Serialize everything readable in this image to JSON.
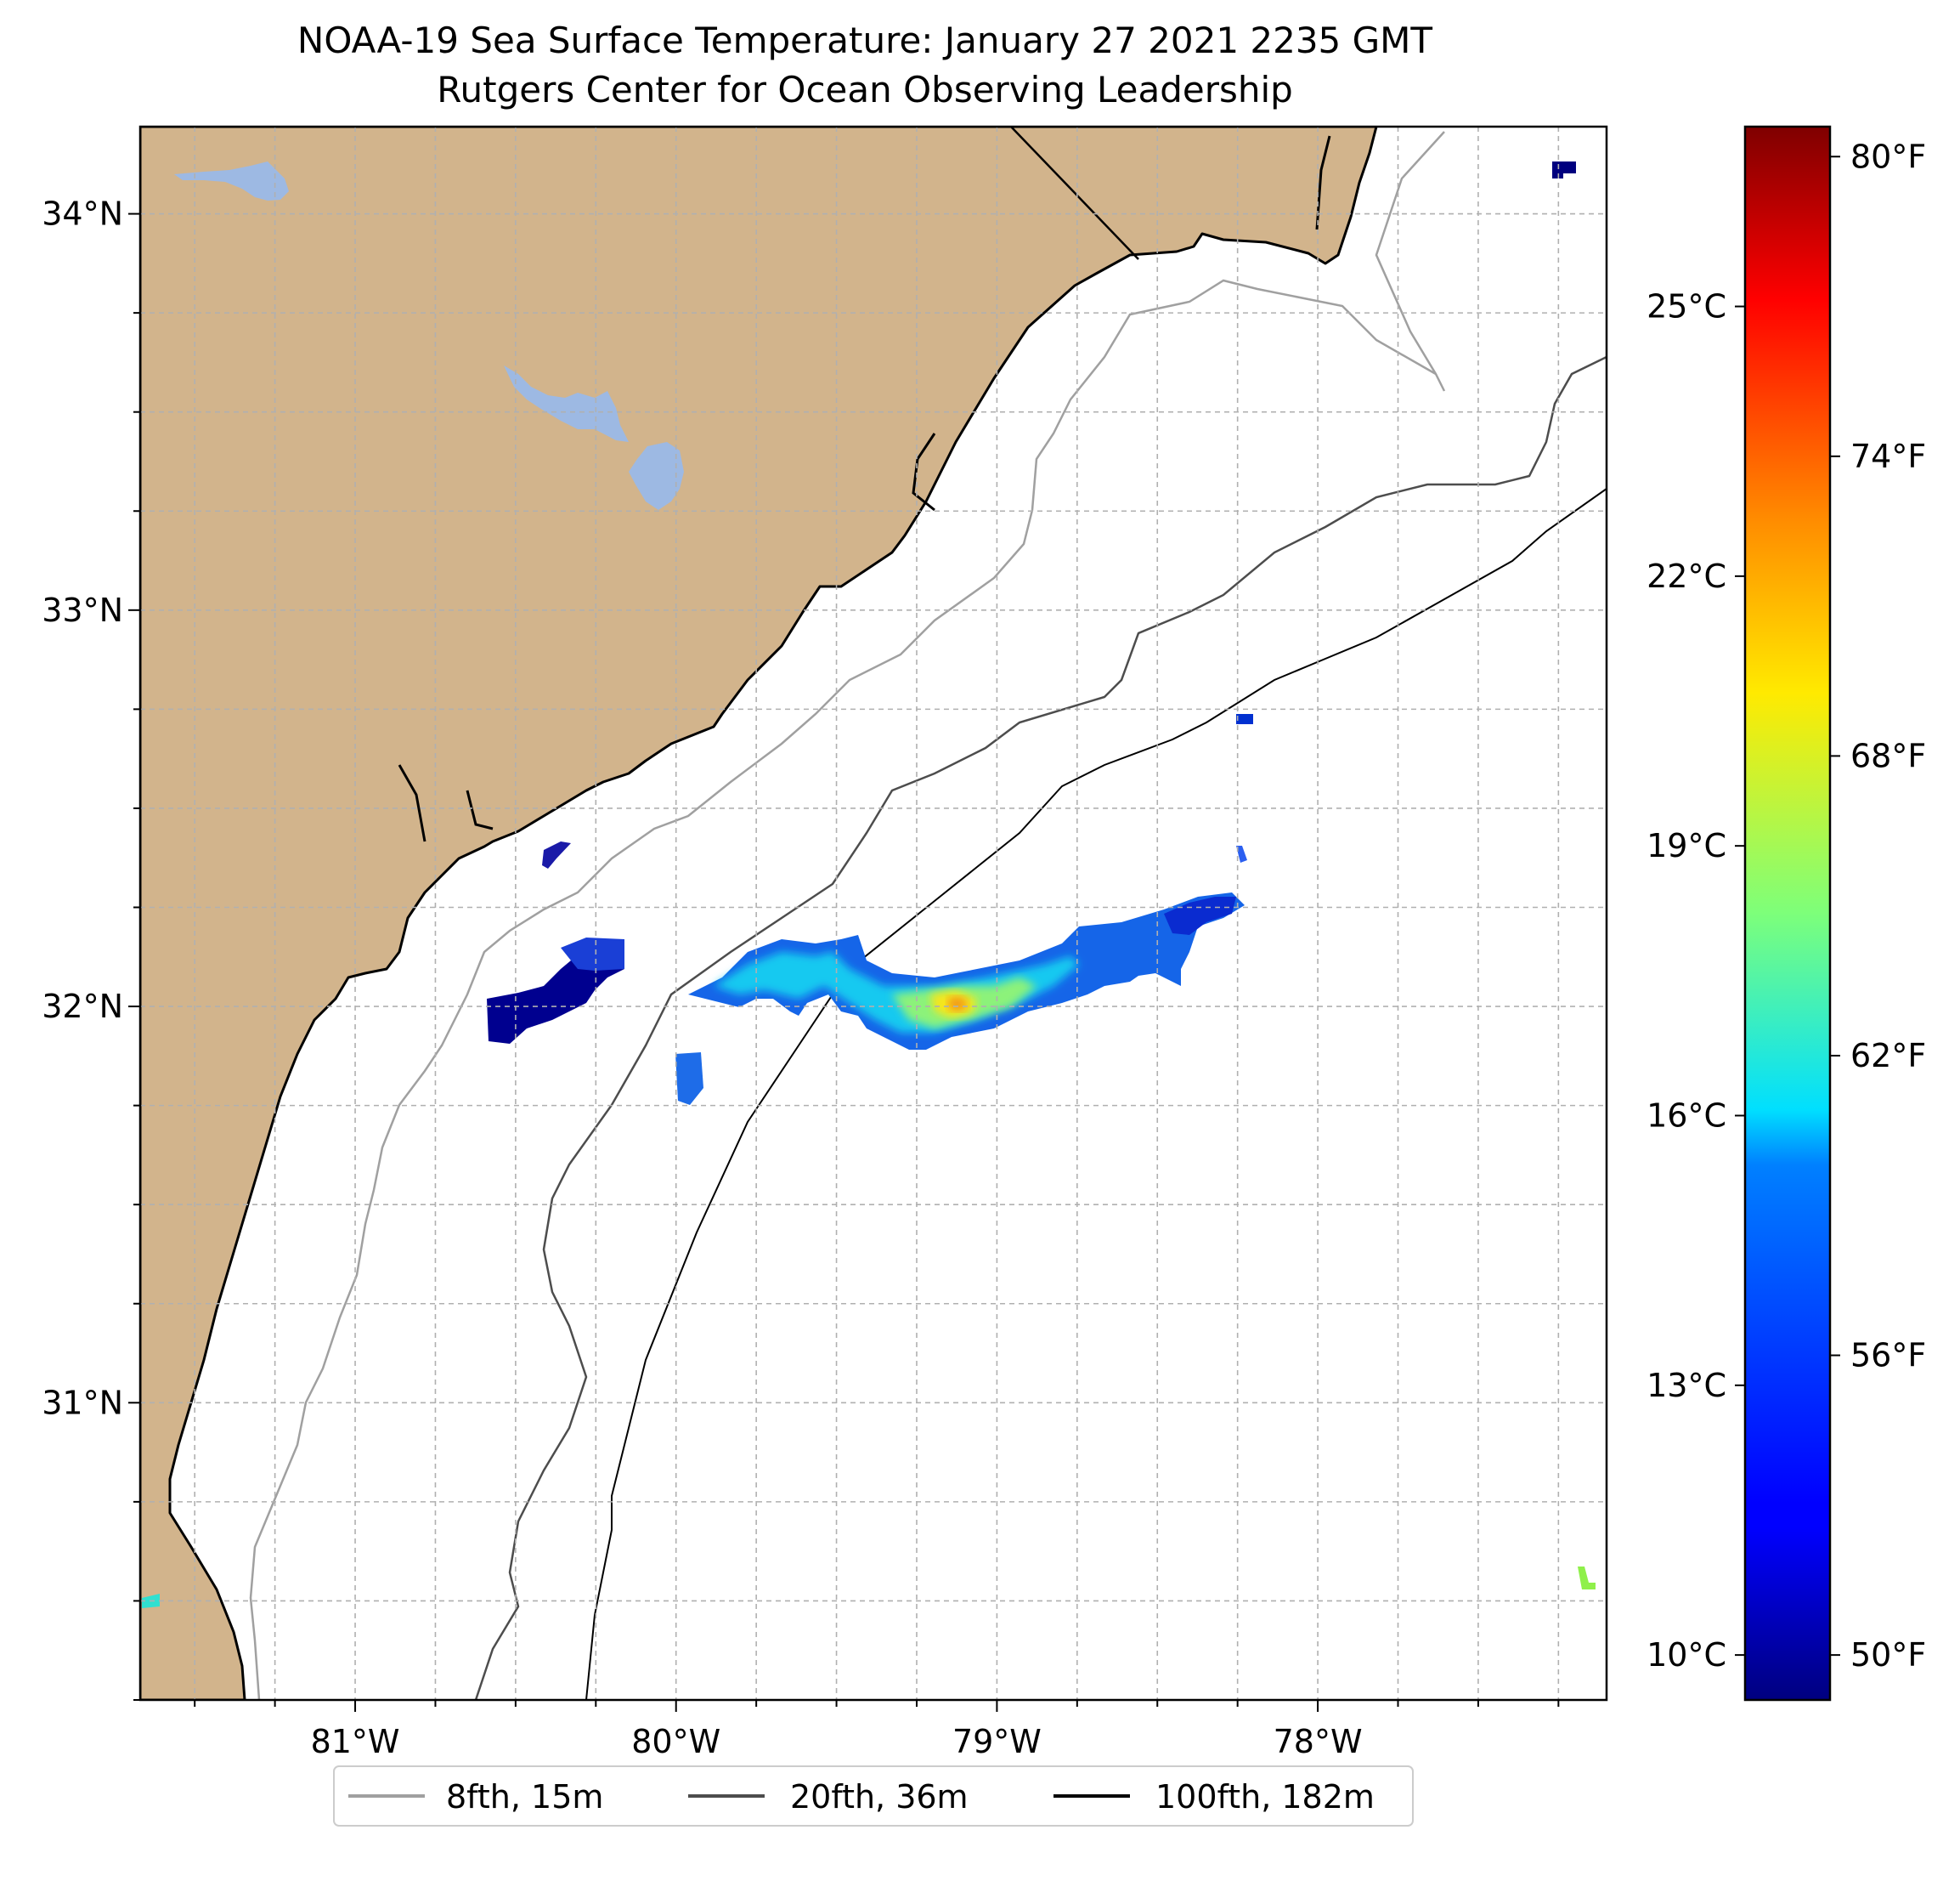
{
  "title": {
    "line1": "NOAA-19 Sea Surface Temperature: January 27 2021 2235 GMT",
    "line2": "Rutgers Center for Ocean Observing Leadership"
  },
  "map": {
    "lon_range": [
      -81.67,
      -77.1
    ],
    "lat_range": [
      30.25,
      34.22
    ],
    "lon_ticks": [
      {
        "value": -81,
        "label": "81°W"
      },
      {
        "value": -80,
        "label": "80°W"
      },
      {
        "value": -79,
        "label": "79°W"
      },
      {
        "value": -78,
        "label": "78°W"
      }
    ],
    "lat_ticks": [
      {
        "value": 34,
        "label": "34°N"
      },
      {
        "value": 33,
        "label": "33°N"
      },
      {
        "value": 32,
        "label": "32°N"
      },
      {
        "value": 31,
        "label": "31°N"
      }
    ],
    "minor_gridlines": "every 0.25°",
    "colors": {
      "land": "#d2b48c",
      "lake": "#9db9e3",
      "ocean": "#ffffff",
      "coast": "#000000"
    }
  },
  "colorbar": {
    "colormap": "jet",
    "celsius_ticks": [
      {
        "value": 10,
        "label": "10°C"
      },
      {
        "value": 13,
        "label": "13°C"
      },
      {
        "value": 16,
        "label": "16°C"
      },
      {
        "value": 19,
        "label": "19°C"
      },
      {
        "value": 22,
        "label": "22°C"
      },
      {
        "value": 25,
        "label": "25°C"
      }
    ],
    "fahrenheit_ticks": [
      {
        "value": 50,
        "label": "50°F"
      },
      {
        "value": 56,
        "label": "56°F"
      },
      {
        "value": 62,
        "label": "62°F"
      },
      {
        "value": 68,
        "label": "68°F"
      },
      {
        "value": 74,
        "label": "74°F"
      },
      {
        "value": 80,
        "label": "80°F"
      }
    ],
    "range_celsius": [
      9.5,
      27.0
    ]
  },
  "legend": {
    "location": "bottom-center",
    "items": [
      {
        "label": "8fth, 15m",
        "color": "#a0a0a0"
      },
      {
        "label": "20fth, 36m",
        "color": "#4d4d4d"
      },
      {
        "label": "100fth, 182m",
        "color": "#000000"
      }
    ]
  }
}
